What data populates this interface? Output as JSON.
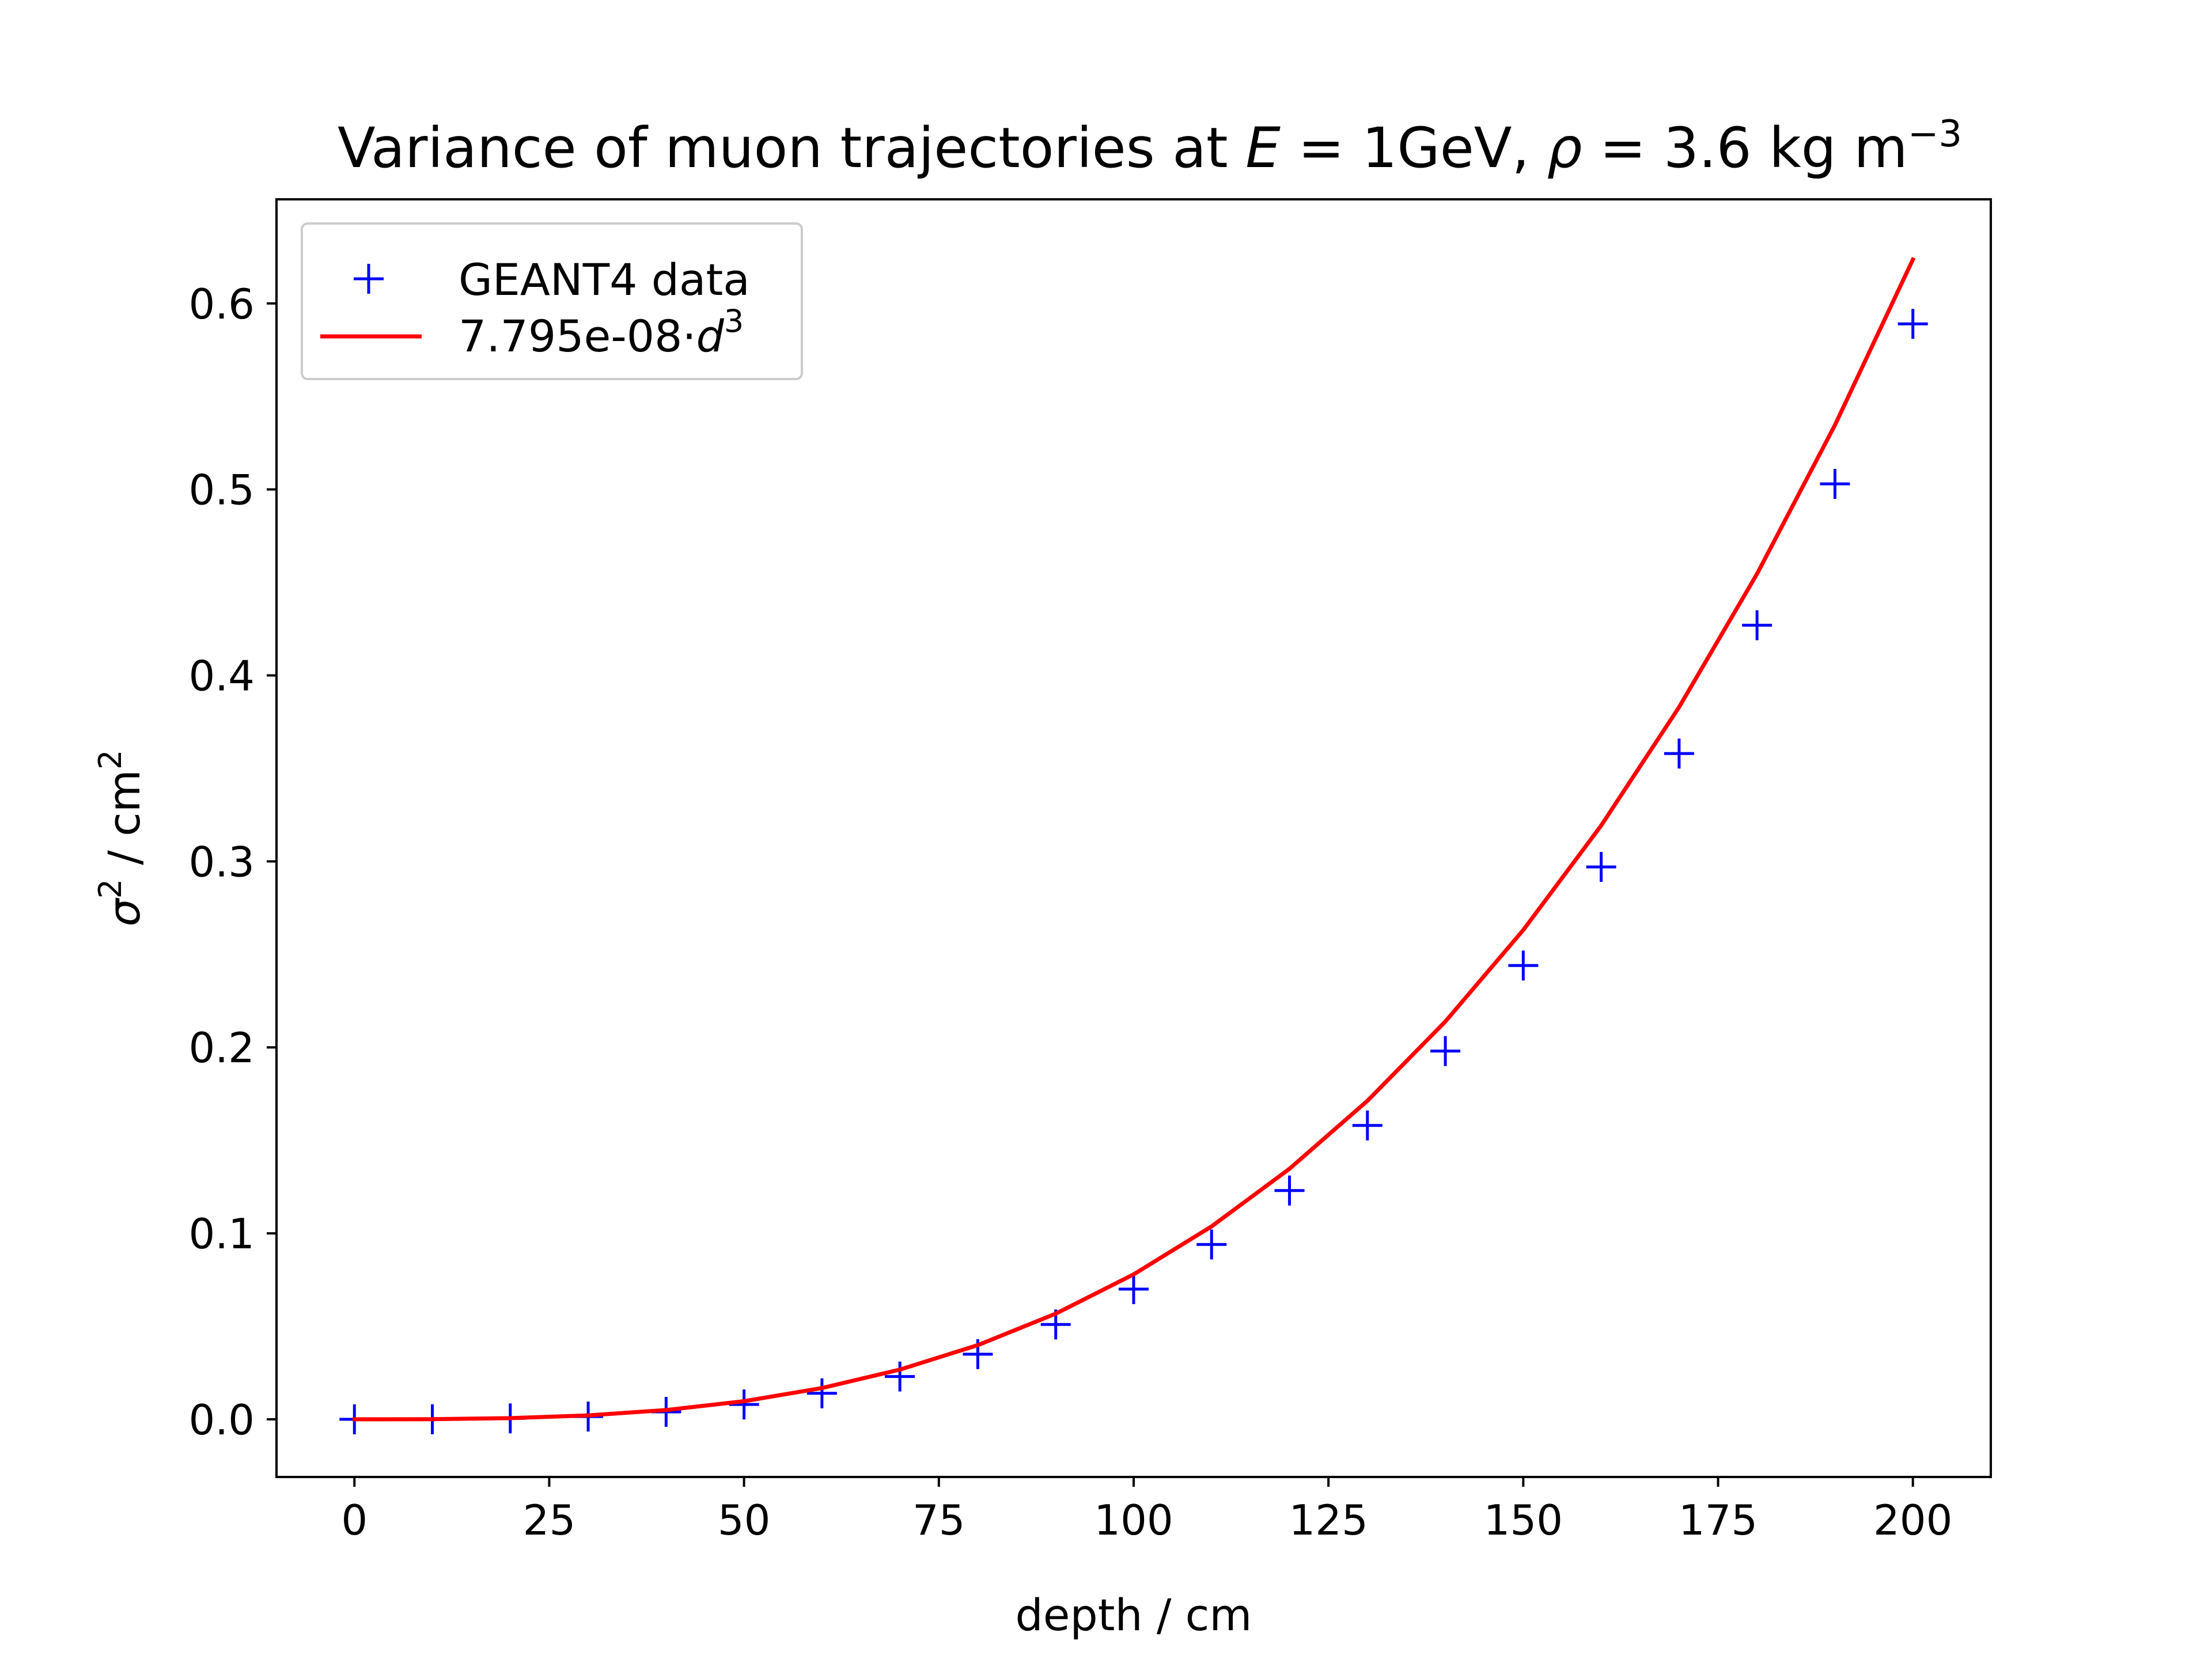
{
  "chart_data": {
    "type": "scatter",
    "title": "Variance of muon trajectories at E = 1GeV, ρ = 3.6 kg m⁻³",
    "title_parts": {
      "prefix": "Variance of muon trajectories at ",
      "e_var": "E",
      "e_eq": " = 1GeV, ",
      "rho_var": "ρ",
      "rho_eq": " = 3.6 kg m",
      "rho_exp": "−3"
    },
    "xlabel": "depth / cm",
    "ylabel": {
      "var": "σ",
      "exp1": "2",
      "mid": " / cm",
      "exp2": "2"
    },
    "xlim": [
      -10,
      210
    ],
    "ylim": [
      -0.031,
      0.656
    ],
    "xticks": [
      0,
      25,
      50,
      75,
      100,
      125,
      150,
      175,
      200
    ],
    "yticks": [
      0.0,
      0.1,
      0.2,
      0.3,
      0.4,
      0.5,
      0.6
    ],
    "grid": false,
    "legend_position": "upper-left",
    "series": [
      {
        "name": "GEANT4 data",
        "kind": "scatter",
        "marker": "+",
        "color": "#0000ff",
        "x": [
          0,
          10,
          20,
          30,
          40,
          50,
          60,
          70,
          80,
          90,
          100,
          110,
          120,
          130,
          140,
          150,
          160,
          170,
          180,
          190,
          200
        ],
        "y": [
          0.0,
          0.0,
          0.0005,
          0.0015,
          0.004,
          0.008,
          0.014,
          0.023,
          0.035,
          0.051,
          0.07,
          0.094,
          0.123,
          0.158,
          0.198,
          0.244,
          0.297,
          0.358,
          0.427,
          0.503,
          0.589
        ]
      },
      {
        "name_parts": {
          "coef": "7.795e-08·",
          "var": "d",
          "exp": "3"
        },
        "kind": "line",
        "color": "#ff0000",
        "coefficient": 7.795e-08,
        "exponent": 3,
        "x_range": [
          0,
          200
        ],
        "x_step": 10
      }
    ]
  }
}
